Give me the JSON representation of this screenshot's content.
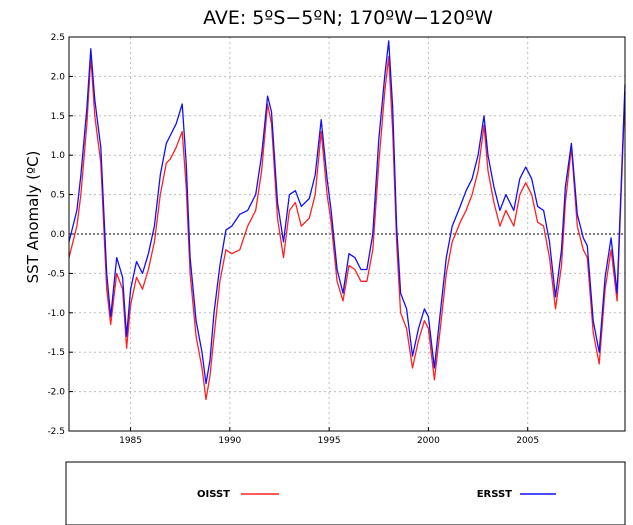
{
  "chart_data": {
    "type": "line",
    "title": "AVE:   5ºS−5ºN;   170ºW−120ºW",
    "xlabel": "",
    "ylabel": "SST Anomaly (ºC)",
    "xlim": [
      1981.9,
      2009.9
    ],
    "ylim": [
      -2.5,
      2.5
    ],
    "xticks": [
      1985,
      1990,
      1995,
      2000,
      2005
    ],
    "xtick_labels": [
      "1985",
      "1990",
      "1995",
      "2000",
      "2005"
    ],
    "yticks": [
      -2.5,
      -2.0,
      -1.5,
      -1.0,
      -0.5,
      0.0,
      0.5,
      1.0,
      1.5,
      2.0,
      2.5
    ],
    "ytick_labels": [
      "-2.5",
      "-2.0",
      "-1.5",
      "-1.0",
      "-0.5",
      "0.0",
      "0.5",
      "1.0",
      "1.5",
      "2.0",
      "2.5"
    ],
    "grid": true,
    "zero_line": true,
    "legend_position": "bottom",
    "series": [
      {
        "name": "OISST",
        "color": "#ff2020",
        "x": [
          1981.9,
          1982.3,
          1982.5,
          1982.8,
          1983.0,
          1983.2,
          1983.5,
          1983.8,
          1984.0,
          1984.3,
          1984.6,
          1984.8,
          1985.0,
          1985.3,
          1985.6,
          1985.9,
          1986.2,
          1986.5,
          1986.8,
          1987.0,
          1987.3,
          1987.6,
          1987.8,
          1988.0,
          1988.3,
          1988.6,
          1988.8,
          1989.0,
          1989.2,
          1989.5,
          1989.8,
          1990.1,
          1990.5,
          1990.9,
          1991.3,
          1991.6,
          1991.9,
          1992.1,
          1992.4,
          1992.7,
          1993.0,
          1993.3,
          1993.6,
          1994.0,
          1994.3,
          1994.6,
          1994.9,
          1995.1,
          1995.4,
          1995.7,
          1996.0,
          1996.3,
          1996.6,
          1996.9,
          1997.2,
          1997.5,
          1997.8,
          1998.0,
          1998.2,
          1998.4,
          1998.6,
          1998.9,
          1999.2,
          1999.5,
          1999.8,
          2000.0,
          2000.3,
          2000.6,
          2000.9,
          2001.2,
          2001.6,
          2001.9,
          2002.2,
          2002.5,
          2002.8,
          2003.0,
          2003.3,
          2003.6,
          2003.9,
          2004.3,
          2004.6,
          2004.9,
          2005.2,
          2005.5,
          2005.8,
          2006.1,
          2006.4,
          2006.7,
          2006.9,
          2007.2,
          2007.5,
          2007.8,
          2008.0,
          2008.3,
          2008.6,
          2008.9,
          2009.2,
          2009.5,
          2009.9
        ],
        "values": [
          -0.3,
          0.1,
          0.5,
          1.4,
          2.25,
          1.5,
          0.9,
          -0.7,
          -1.15,
          -0.5,
          -0.7,
          -1.45,
          -0.9,
          -0.55,
          -0.7,
          -0.45,
          -0.1,
          0.5,
          0.9,
          0.95,
          1.1,
          1.3,
          0.6,
          -0.5,
          -1.3,
          -1.7,
          -2.1,
          -1.8,
          -1.3,
          -0.6,
          -0.2,
          -0.25,
          -0.2,
          0.1,
          0.3,
          0.8,
          1.65,
          1.4,
          0.2,
          -0.3,
          0.3,
          0.4,
          0.1,
          0.2,
          0.5,
          1.3,
          0.5,
          0.15,
          -0.6,
          -0.85,
          -0.4,
          -0.45,
          -0.6,
          -0.6,
          -0.2,
          0.9,
          1.8,
          2.25,
          1.3,
          -0.1,
          -1.0,
          -1.2,
          -1.7,
          -1.35,
          -1.1,
          -1.2,
          -1.85,
          -1.2,
          -0.5,
          -0.1,
          0.15,
          0.3,
          0.5,
          0.8,
          1.38,
          0.8,
          0.4,
          0.1,
          0.3,
          0.1,
          0.5,
          0.65,
          0.5,
          0.15,
          0.1,
          -0.3,
          -0.95,
          -0.4,
          0.4,
          1.1,
          0.1,
          -0.2,
          -0.3,
          -1.25,
          -1.65,
          -0.7,
          -0.2,
          -0.85,
          1.8
        ]
      },
      {
        "name": "ERSST",
        "color": "#1010ff",
        "x": [
          1981.9,
          1982.3,
          1982.5,
          1982.8,
          1983.0,
          1983.2,
          1983.5,
          1983.8,
          1984.0,
          1984.3,
          1984.6,
          1984.8,
          1985.0,
          1985.3,
          1985.6,
          1985.9,
          1986.2,
          1986.5,
          1986.8,
          1987.0,
          1987.3,
          1987.6,
          1987.8,
          1988.0,
          1988.3,
          1988.6,
          1988.8,
          1989.0,
          1989.2,
          1989.5,
          1989.8,
          1990.1,
          1990.5,
          1990.9,
          1991.3,
          1991.6,
          1991.9,
          1992.1,
          1992.4,
          1992.7,
          1993.0,
          1993.3,
          1993.6,
          1994.0,
          1994.3,
          1994.6,
          1994.9,
          1995.1,
          1995.4,
          1995.7,
          1996.0,
          1996.3,
          1996.6,
          1996.9,
          1997.2,
          1997.5,
          1997.8,
          1998.0,
          1998.2,
          1998.4,
          1998.6,
          1998.9,
          1999.2,
          1999.5,
          1999.8,
          2000.0,
          2000.3,
          2000.6,
          2000.9,
          2001.2,
          2001.6,
          2001.9,
          2002.2,
          2002.5,
          2002.8,
          2003.0,
          2003.3,
          2003.6,
          2003.9,
          2004.3,
          2004.6,
          2004.9,
          2005.2,
          2005.5,
          2005.8,
          2006.1,
          2006.4,
          2006.7,
          2006.9,
          2007.2,
          2007.5,
          2007.8,
          2008.0,
          2008.3,
          2008.6,
          2008.9,
          2009.2,
          2009.5,
          2009.9
        ],
        "values": [
          -0.1,
          0.3,
          0.75,
          1.6,
          2.35,
          1.7,
          1.1,
          -0.5,
          -1.05,
          -0.3,
          -0.55,
          -1.3,
          -0.7,
          -0.35,
          -0.5,
          -0.25,
          0.1,
          0.75,
          1.15,
          1.25,
          1.4,
          1.65,
          0.9,
          -0.3,
          -1.1,
          -1.5,
          -1.9,
          -1.6,
          -1.0,
          -0.4,
          0.05,
          0.1,
          0.25,
          0.3,
          0.5,
          1.0,
          1.75,
          1.55,
          0.4,
          -0.1,
          0.5,
          0.55,
          0.35,
          0.45,
          0.75,
          1.45,
          0.7,
          0.3,
          -0.45,
          -0.75,
          -0.25,
          -0.3,
          -0.45,
          -0.45,
          0.0,
          1.2,
          2.0,
          2.45,
          1.6,
          0.1,
          -0.75,
          -0.95,
          -1.55,
          -1.2,
          -0.95,
          -1.05,
          -1.7,
          -1.0,
          -0.3,
          0.1,
          0.35,
          0.55,
          0.7,
          1.0,
          1.5,
          1.0,
          0.6,
          0.3,
          0.5,
          0.3,
          0.7,
          0.85,
          0.7,
          0.35,
          0.3,
          -0.1,
          -0.8,
          -0.2,
          0.6,
          1.15,
          0.25,
          -0.05,
          -0.15,
          -1.1,
          -1.5,
          -0.55,
          -0.05,
          -0.75,
          1.9
        ]
      }
    ]
  }
}
